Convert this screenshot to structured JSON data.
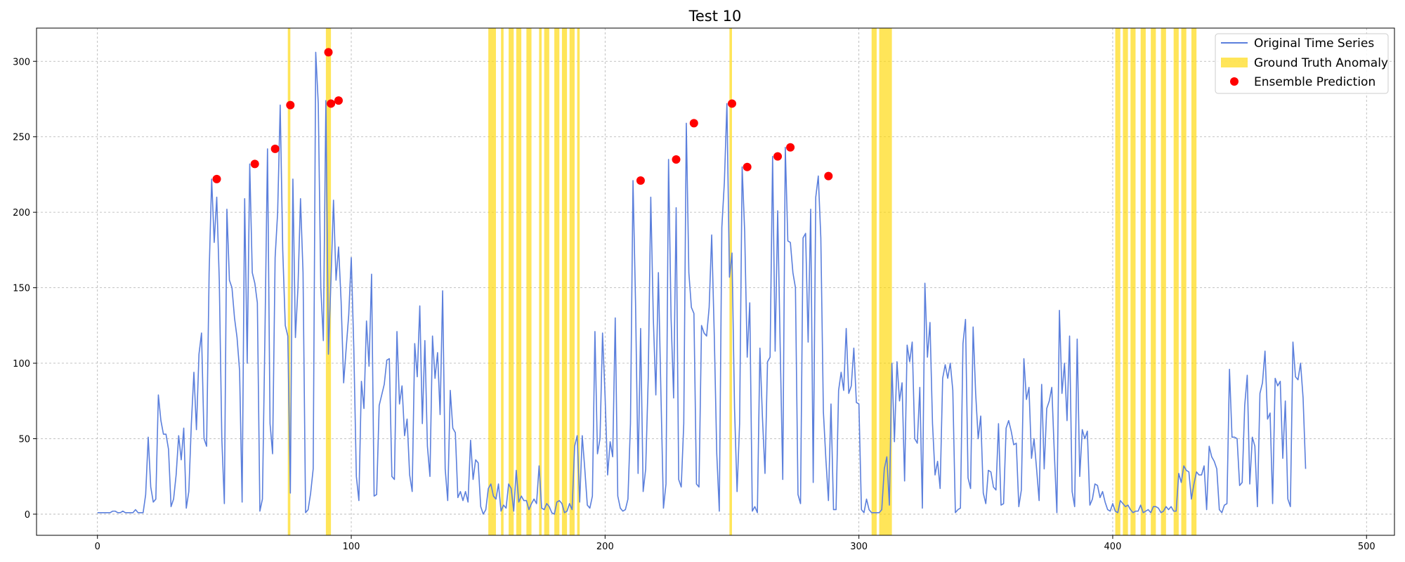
{
  "chart_data": {
    "type": "line",
    "title": "Test 10",
    "xlabel": "",
    "ylabel": "",
    "xlim": [
      -24,
      511
    ],
    "ylim": [
      -14,
      322
    ],
    "xticks": [
      0,
      100,
      200,
      300,
      400,
      500
    ],
    "yticks": [
      0,
      50,
      100,
      150,
      200,
      250,
      300
    ],
    "grid": true,
    "legend_position": "top-right",
    "colors": {
      "series": "#5b7fdc",
      "anomaly": "#ffd700",
      "prediction": "#ff0000"
    },
    "legend": [
      {
        "label": "Original Time Series",
        "kind": "line"
      },
      {
        "label": "Ground Truth Anomaly",
        "kind": "patch"
      },
      {
        "label": "Ensemble Prediction",
        "kind": "marker"
      }
    ],
    "series": [
      {
        "name": "Original Time Series",
        "start_x": 0,
        "values": [
          1,
          1,
          1,
          1,
          1,
          1,
          2,
          2,
          1,
          1,
          2,
          1,
          1,
          1,
          1,
          3,
          1,
          1,
          1,
          13,
          51,
          18,
          8,
          10,
          79,
          62,
          53,
          53,
          43,
          5,
          10,
          26,
          52,
          36,
          57,
          4,
          15,
          60,
          94,
          56,
          106,
          120,
          50,
          45,
          160,
          222,
          180,
          210,
          155,
          50,
          7,
          202,
          155,
          150,
          130,
          117,
          95,
          8,
          209,
          100,
          232,
          160,
          153,
          140,
          2,
          10,
          120,
          242,
          60,
          40,
          170,
          200,
          271,
          175,
          125,
          118,
          14,
          222,
          117,
          150,
          209,
          160,
          1,
          3,
          14,
          30,
          306,
          272,
          150,
          115,
          274,
          106,
          155,
          208,
          155,
          177,
          141,
          87,
          110,
          132,
          170,
          110,
          25,
          9,
          88,
          70,
          128,
          98,
          159,
          12,
          13,
          72,
          79,
          86,
          102,
          103,
          25,
          23,
          121,
          73,
          85,
          52,
          63,
          26,
          15,
          113,
          91,
          138,
          60,
          115,
          45,
          25,
          118,
          90,
          107,
          66,
          148,
          30,
          9,
          82,
          57,
          54,
          11,
          15,
          9,
          15,
          8,
          49,
          23,
          36,
          34,
          5,
          0,
          3,
          17,
          20,
          12,
          10,
          20,
          2,
          6,
          4,
          20,
          17,
          2,
          29,
          8,
          12,
          9,
          9,
          3,
          7,
          10,
          7,
          32,
          4,
          3,
          7,
          5,
          1,
          0,
          8,
          9,
          7,
          1,
          2,
          7,
          3,
          45,
          52,
          8,
          52,
          30,
          6,
          4,
          12,
          121,
          40,
          50,
          120,
          78,
          26,
          48,
          38,
          130,
          12,
          4,
          2,
          3,
          10,
          60,
          221,
          140,
          27,
          123,
          15,
          30,
          90,
          210,
          130,
          79,
          160,
          80,
          4,
          20,
          235,
          130,
          77,
          203,
          23,
          18,
          60,
          259,
          160,
          137,
          133,
          20,
          18,
          125,
          120,
          118,
          137,
          185,
          120,
          40,
          2,
          190,
          220,
          272,
          157,
          173,
          70,
          15,
          60,
          230,
          187,
          104,
          140,
          2,
          5,
          1,
          110,
          64,
          27,
          101,
          104,
          237,
          108,
          201,
          110,
          23,
          243,
          181,
          180,
          160,
          150,
          13,
          7,
          183,
          186,
          114,
          202,
          21,
          210,
          224,
          183,
          68,
          36,
          9,
          73,
          3,
          3,
          82,
          94,
          82,
          123,
          80,
          85,
          110,
          74,
          73,
          3,
          1,
          10,
          3,
          1,
          1,
          1,
          1,
          3,
          30,
          38,
          6,
          100,
          48,
          101,
          75,
          87,
          22,
          112,
          101,
          114,
          50,
          47,
          84,
          4,
          153,
          104,
          127,
          60,
          26,
          35,
          17,
          90,
          99,
          90,
          100,
          82,
          1,
          3,
          4,
          113,
          129,
          24,
          17,
          124,
          80,
          50,
          65,
          14,
          7,
          29,
          28,
          18,
          16,
          60,
          6,
          7,
          57,
          62,
          55,
          46,
          47,
          5,
          16,
          103,
          76,
          84,
          37,
          50,
          30,
          9,
          86,
          30,
          70,
          75,
          84,
          40,
          1,
          135,
          80,
          100,
          62,
          118,
          15,
          5,
          116,
          25,
          56,
          50,
          55,
          6,
          10,
          20,
          19,
          11,
          15,
          8,
          3,
          2,
          7,
          2,
          1,
          9,
          7,
          5,
          6,
          3,
          1,
          2,
          2,
          6,
          1,
          2,
          3,
          1,
          5,
          5,
          4,
          1,
          2,
          5,
          3,
          5,
          2,
          2,
          27,
          21,
          32,
          29,
          28,
          10,
          20,
          28,
          26,
          26,
          32,
          3,
          45,
          38,
          35,
          30,
          3,
          1,
          6,
          7,
          96,
          51,
          51,
          50,
          19,
          21,
          72,
          92,
          20,
          51,
          45,
          5,
          80,
          87,
          108,
          63,
          67,
          7,
          90,
          85,
          88,
          37,
          75,
          10,
          5,
          114,
          91,
          89,
          100,
          77,
          30
        ]
      }
    ],
    "anomaly_ranges": [
      [
        75,
        76
      ],
      [
        90,
        92
      ],
      [
        154,
        157
      ],
      [
        159,
        160
      ],
      [
        162,
        164
      ],
      [
        165,
        167
      ],
      [
        169,
        171
      ],
      [
        174,
        175
      ],
      [
        176,
        178
      ],
      [
        180,
        182
      ],
      [
        183,
        185
      ],
      [
        186,
        188
      ],
      [
        189,
        190
      ],
      [
        249,
        250
      ],
      [
        305,
        307
      ],
      [
        308,
        313
      ],
      [
        401,
        403
      ],
      [
        404,
        406
      ],
      [
        407,
        409
      ],
      [
        411,
        413
      ],
      [
        415,
        417
      ],
      [
        419,
        421
      ],
      [
        424,
        426
      ],
      [
        427,
        429
      ],
      [
        431,
        433
      ]
    ],
    "predictions": [
      {
        "x": 47,
        "y": 222
      },
      {
        "x": 62,
        "y": 232
      },
      {
        "x": 70,
        "y": 242
      },
      {
        "x": 76,
        "y": 271
      },
      {
        "x": 91,
        "y": 306
      },
      {
        "x": 92,
        "y": 272
      },
      {
        "x": 95,
        "y": 274
      },
      {
        "x": 214,
        "y": 221
      },
      {
        "x": 228,
        "y": 235
      },
      {
        "x": 235,
        "y": 259
      },
      {
        "x": 250,
        "y": 272
      },
      {
        "x": 256,
        "y": 230
      },
      {
        "x": 268,
        "y": 237
      },
      {
        "x": 273,
        "y": 243
      },
      {
        "x": 288,
        "y": 224
      }
    ]
  }
}
